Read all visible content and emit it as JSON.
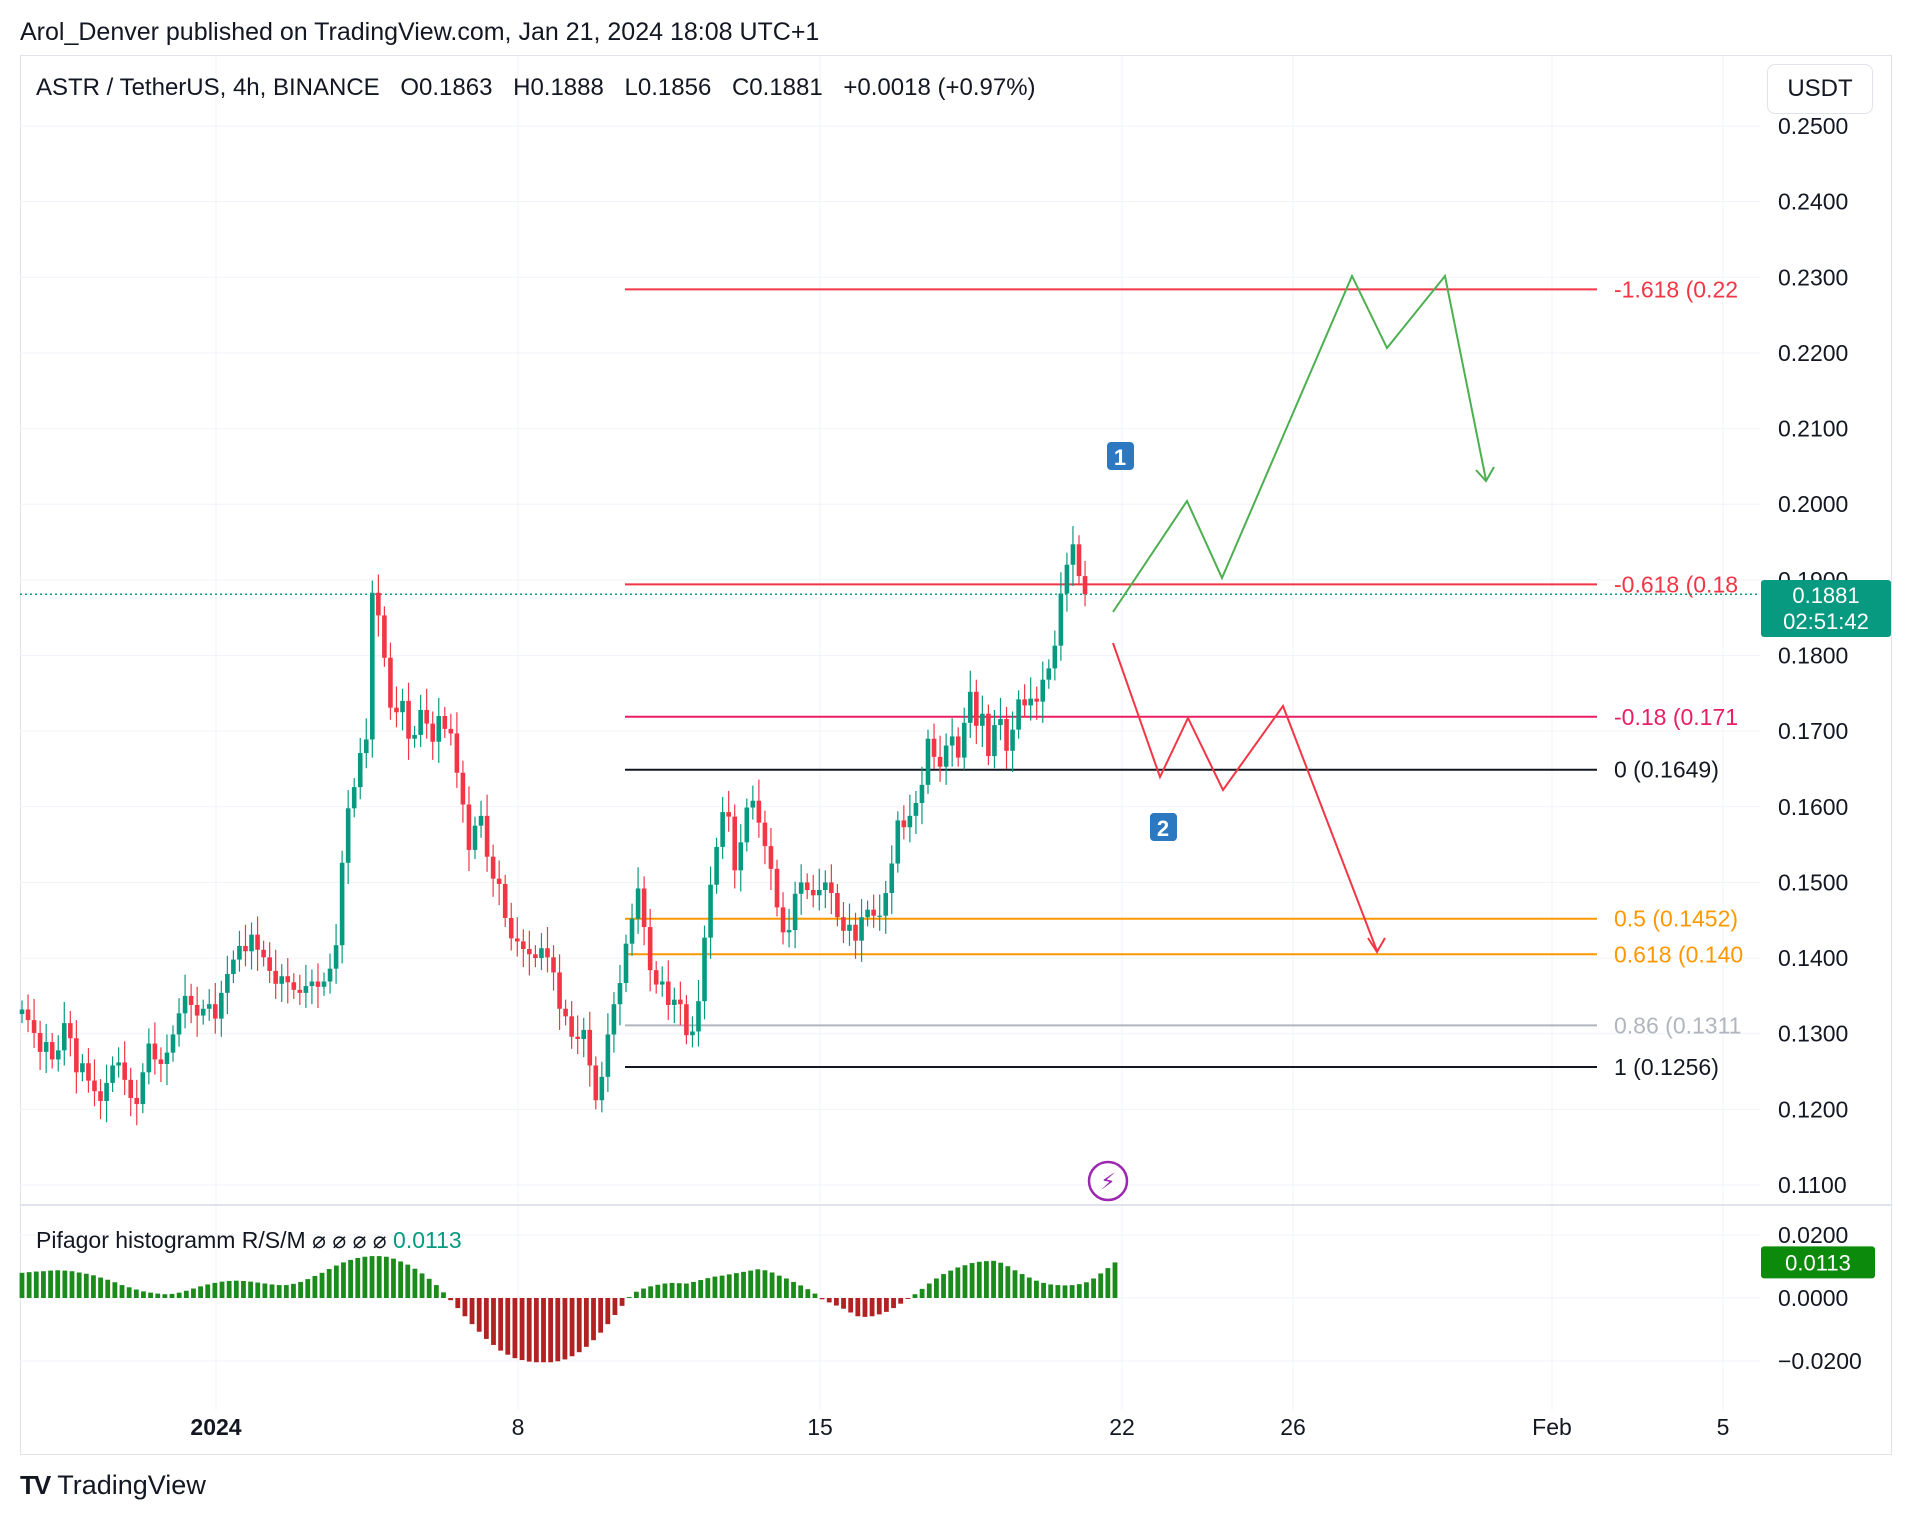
{
  "header": {
    "publisher": "Arol_Denver published on TradingView.com, Jan 21, 2024 18:08 UTC+1",
    "symbol": "ASTR / TetherUS, 4h, BINANCE",
    "open": "O0.1863",
    "high": "H0.1888",
    "low": "L0.1856",
    "close": "C0.1881",
    "change": "+0.0018 (+0.97%)",
    "currency": "USDT"
  },
  "price_badge": {
    "price": "0.1881",
    "countdown": "02:51:42"
  },
  "indicator": {
    "name": "Pifagor histogramm R/S/M",
    "settings": "⌀ ⌀ ⌀ ⌀",
    "value": "0.0113",
    "yticks": [
      "0.0200",
      "0.0000",
      "−0.0200"
    ]
  },
  "footer": {
    "brand": "TradingView"
  },
  "colors": {
    "up": "#089981",
    "down": "#f23645",
    "fib_red": "#f23645",
    "fib_orange": "#ff9800",
    "fib_gray": "#b2b5be",
    "fib_black": "#131722",
    "hist_green": "#1b8c1b",
    "hist_red": "#b22222",
    "path_green": "#4caf50",
    "path_red": "#f23645",
    "label_blue": "#2962ff"
  },
  "chart_data": {
    "type": "candlestick",
    "symbol": "ASTR / TetherUS",
    "timeframe": "4h",
    "xticks": [
      "2024",
      "8",
      "15",
      "22",
      "26",
      "Feb",
      "5"
    ],
    "yticks": [
      "0.2500",
      "0.2400",
      "0.2300",
      "0.2200",
      "0.2100",
      "0.2000",
      "0.1900",
      "0.1800",
      "0.1700",
      "0.1600",
      "0.1500",
      "0.1400",
      "0.1300",
      "0.1200",
      "0.1100"
    ],
    "ylim": [
      0.1075,
      0.2535
    ],
    "last_price": 0.1881,
    "fib_levels": [
      {
        "label": "-1.618 (0.22",
        "value": 0.2284,
        "color": "#f23645"
      },
      {
        "label": "-0.618 (0.18",
        "value": 0.1894,
        "color": "#f23645"
      },
      {
        "label": "-0.18 (0.171",
        "value": 0.1719,
        "color": "#e91e63"
      },
      {
        "label": "0 (0.1649)",
        "value": 0.1649,
        "color": "#131722"
      },
      {
        "label": "0.5 (0.1452)",
        "value": 0.1452,
        "color": "#ff9800"
      },
      {
        "label": "0.618 (0.140",
        "value": 0.1405,
        "color": "#ff9800"
      },
      {
        "label": "0.86 (0.1311",
        "value": 0.1311,
        "color": "#b2b5be"
      },
      {
        "label": "1 (0.1256)",
        "value": 0.1256,
        "color": "#131722"
      }
    ],
    "closes": [
      0.1332,
      0.1318,
      0.1301,
      0.1276,
      0.1289,
      0.1266,
      0.1278,
      0.1314,
      0.1294,
      0.1249,
      0.1261,
      0.1238,
      0.1224,
      0.1211,
      0.1235,
      0.1258,
      0.1262,
      0.1239,
      0.1215,
      0.1207,
      0.1249,
      0.1287,
      0.1266,
      0.126,
      0.1275,
      0.1299,
      0.1327,
      0.135,
      0.1338,
      0.1324,
      0.1333,
      0.1339,
      0.132,
      0.1354,
      0.1379,
      0.1398,
      0.1416,
      0.1409,
      0.1431,
      0.1411,
      0.1401,
      0.1383,
      0.1366,
      0.1376,
      0.1368,
      0.1358,
      0.1354,
      0.1363,
      0.1369,
      0.1362,
      0.1369,
      0.1386,
      0.1417,
      0.1526,
      0.1598,
      0.1626,
      0.1671,
      0.1689,
      0.1883,
      0.1853,
      0.1797,
      0.1731,
      0.1725,
      0.174,
      0.169,
      0.1695,
      0.1728,
      0.171,
      0.1686,
      0.172,
      0.1703,
      0.1697,
      0.1645,
      0.1603,
      0.1543,
      0.1575,
      0.1588,
      0.1534,
      0.1505,
      0.1498,
      0.1453,
      0.1426,
      0.1422,
      0.1412,
      0.1405,
      0.14,
      0.1413,
      0.1401,
      0.1381,
      0.1333,
      0.1323,
      0.1296,
      0.1293,
      0.1305,
      0.1258,
      0.1212,
      0.1243,
      0.1299,
      0.1339,
      0.1367,
      0.1419,
      0.1452,
      0.1492,
      0.1441,
      0.1384,
      0.1365,
      0.1369,
      0.1338,
      0.1345,
      0.1339,
      0.1298,
      0.1303,
      0.1343,
      0.1427,
      0.1497,
      0.1547,
      0.1593,
      0.1587,
      0.1516,
      0.1553,
      0.1599,
      0.1608,
      0.1579,
      0.1548,
      0.1518,
      0.1467,
      0.1434,
      0.1437,
      0.1485,
      0.15,
      0.149,
      0.1483,
      0.149,
      0.15,
      0.1486,
      0.1454,
      0.1436,
      0.1444,
      0.1423,
      0.1454,
      0.1464,
      0.1456,
      0.1456,
      0.1486,
      0.1525,
      0.1582,
      0.1573,
      0.1588,
      0.1605,
      0.1629,
      0.169,
      0.1666,
      0.1653,
      0.1681,
      0.1693,
      0.1665,
      0.1711,
      0.1752,
      0.1707,
      0.1723,
      0.1667,
      0.1708,
      0.1716,
      0.1674,
      0.1702,
      0.1742,
      0.1734,
      0.1743,
      0.1739,
      0.1768,
      0.1783,
      0.1813,
      0.1882,
      0.192,
      0.1947,
      0.1905,
      0.1881
    ],
    "histogram": [
      0.008,
      0.0082,
      0.0084,
      0.0085,
      0.0087,
      0.0088,
      0.0087,
      0.0085,
      0.0081,
      0.0077,
      0.0072,
      0.0065,
      0.0058,
      0.005,
      0.0041,
      0.0034,
      0.0027,
      0.0021,
      0.0017,
      0.0014,
      0.0012,
      0.0013,
      0.0017,
      0.0023,
      0.003,
      0.0037,
      0.0043,
      0.0048,
      0.0052,
      0.0054,
      0.0055,
      0.0054,
      0.0052,
      0.0049,
      0.0046,
      0.0043,
      0.0041,
      0.0041,
      0.0045,
      0.0051,
      0.006,
      0.007,
      0.008,
      0.0092,
      0.0103,
      0.0113,
      0.0121,
      0.0127,
      0.0131,
      0.0133,
      0.0133,
      0.0131,
      0.0125,
      0.0116,
      0.0106,
      0.0093,
      0.0078,
      0.0061,
      0.0041,
      0.0018,
      -0.0007,
      -0.0032,
      -0.0058,
      -0.0083,
      -0.0107,
      -0.013,
      -0.0149,
      -0.0167,
      -0.018,
      -0.0191,
      -0.0197,
      -0.0202,
      -0.0204,
      -0.0204,
      -0.0204,
      -0.0201,
      -0.0195,
      -0.0185,
      -0.0172,
      -0.0155,
      -0.0134,
      -0.011,
      -0.0083,
      -0.0054,
      -0.0025,
      0.0003,
      0.002,
      0.003,
      0.0037,
      0.0042,
      0.0046,
      0.0048,
      0.0047,
      0.0046,
      0.0051,
      0.0057,
      0.0063,
      0.0068,
      0.0071,
      0.0075,
      0.0079,
      0.0083,
      0.0087,
      0.0091,
      0.0088,
      0.0081,
      0.0071,
      0.0062,
      0.0051,
      0.004,
      0.0028,
      0.0014,
      -0.0004,
      -0.0014,
      -0.0024,
      -0.0034,
      -0.0046,
      -0.0058,
      -0.006,
      -0.0058,
      -0.0052,
      -0.0044,
      -0.0032,
      -0.0018,
      -0.0002,
      0.0012,
      0.0029,
      0.0046,
      0.0062,
      0.0076,
      0.0087,
      0.0097,
      0.0104,
      0.0111,
      0.0115,
      0.0117,
      0.0118,
      0.0112,
      0.0101,
      0.0088,
      0.0076,
      0.0065,
      0.0055,
      0.0048,
      0.0043,
      0.0041,
      0.004,
      0.0041,
      0.0044,
      0.005,
      0.0062,
      0.0078,
      0.0095,
      0.0113
    ]
  }
}
